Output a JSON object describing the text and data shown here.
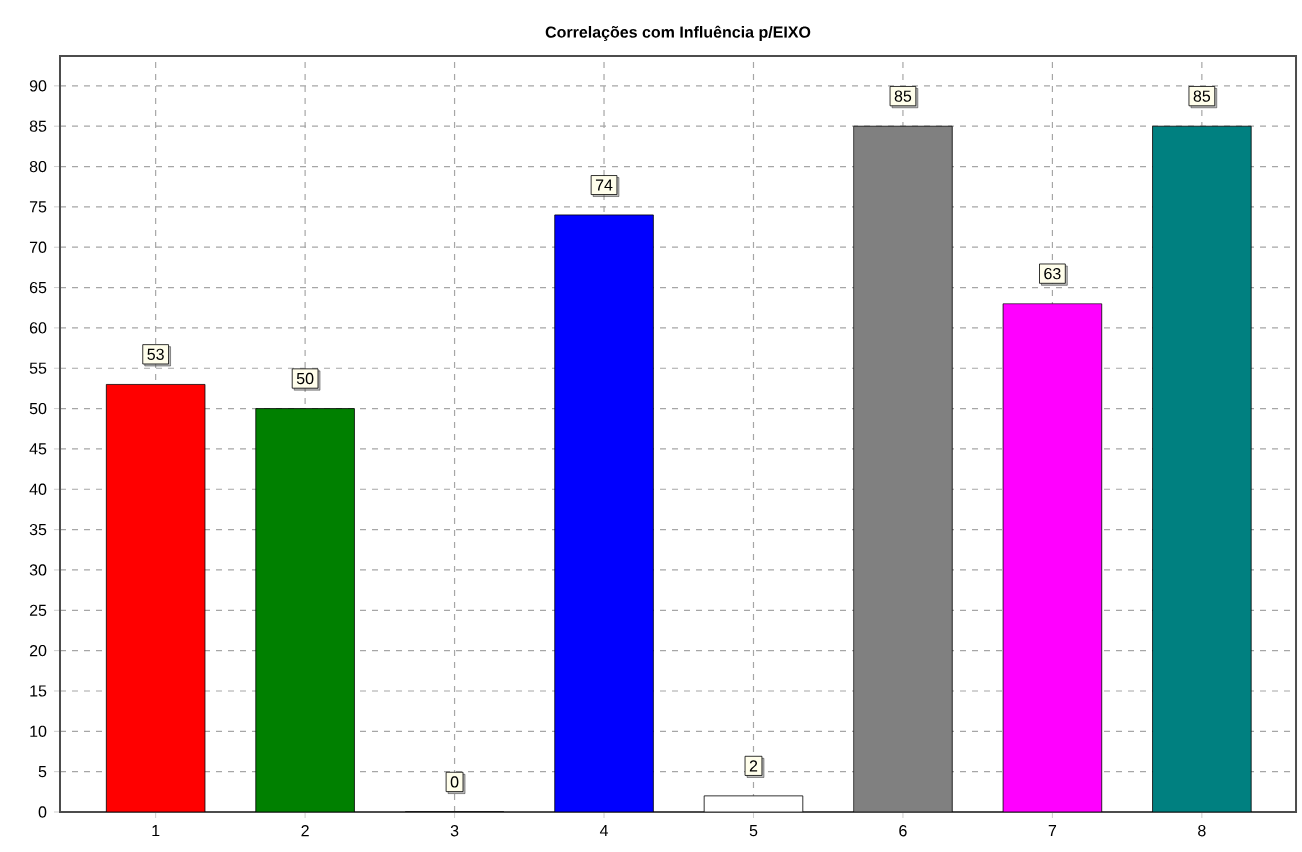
{
  "chart_data": {
    "type": "bar",
    "title": "**Correlações com Influência p/EIXO**",
    "categories": [
      "1",
      "2",
      "3",
      "4",
      "5",
      "6",
      "7",
      "8"
    ],
    "values": [
      53,
      50,
      0,
      74,
      2,
      85,
      63,
      85
    ],
    "colors": [
      "#ff0000",
      "#008000",
      "#808000",
      "#0000ff",
      "#ffffff",
      "#808080",
      "#ff00ff",
      "#008080"
    ],
    "ylim": [
      0,
      93.7
    ],
    "yticks": [
      0,
      5,
      10,
      15,
      20,
      25,
      30,
      35,
      40,
      45,
      50,
      55,
      60,
      65,
      70,
      75,
      80,
      85,
      90
    ],
    "grid": true,
    "data_labels": true
  }
}
